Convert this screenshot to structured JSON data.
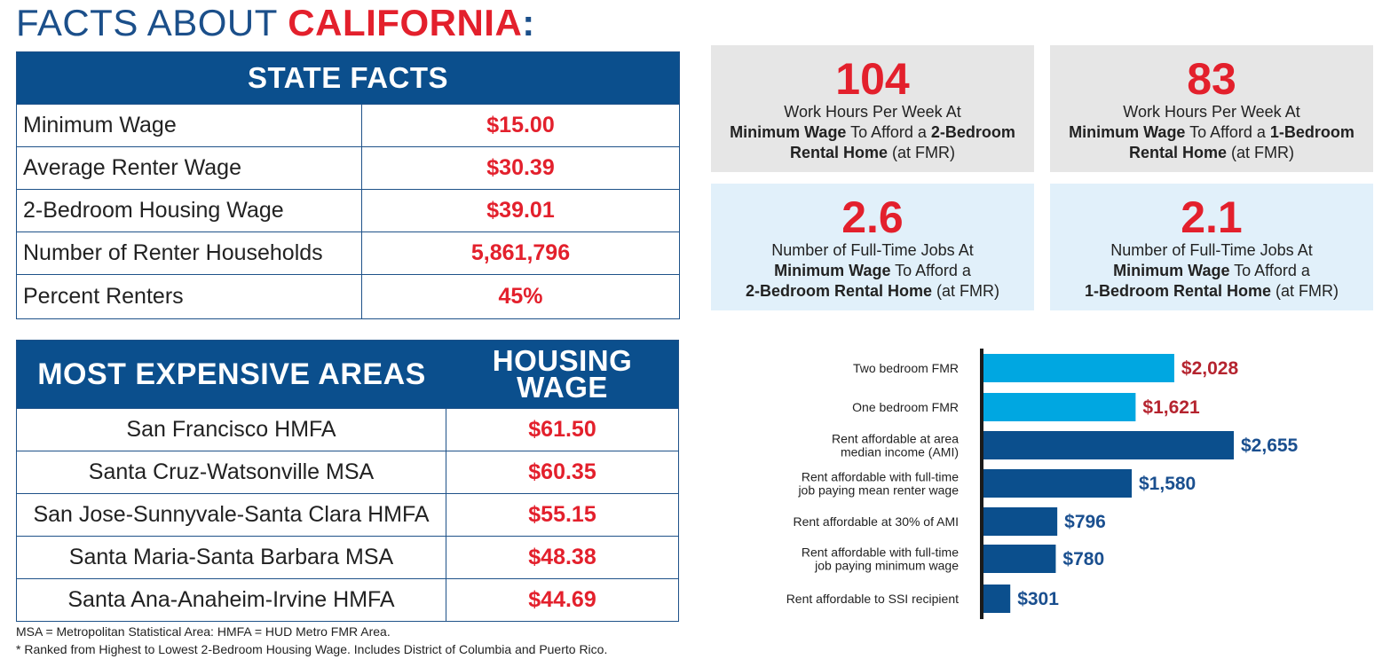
{
  "title": {
    "prefix": "FACTS ABOUT ",
    "state": "CALIFORNIA",
    "suffix": ":"
  },
  "state_facts": {
    "heading": "STATE FACTS",
    "rows": [
      {
        "label": "Minimum Wage",
        "value": "$15.00"
      },
      {
        "label": "Average Renter Wage",
        "value": "$30.39"
      },
      {
        "label": "2-Bedroom Housing Wage",
        "value": "$39.01"
      },
      {
        "label": "Number of Renter Households",
        "value": "5,861,796"
      },
      {
        "label": "Percent Renters",
        "value": "45%"
      }
    ]
  },
  "areas": {
    "heading": "MOST EXPENSIVE AREAS",
    "wage_heading_1": "HOUSING",
    "wage_heading_2": "WAGE",
    "rows": [
      {
        "label": "San Francisco HMFA",
        "value": "$61.50"
      },
      {
        "label": "Santa Cruz-Watsonville MSA",
        "value": "$60.35"
      },
      {
        "label": "San Jose-Sunnyvale-Santa Clara HMFA",
        "value": "$55.15"
      },
      {
        "label": "Santa Maria-Santa Barbara MSA",
        "value": "$48.38"
      },
      {
        "label": "Santa Ana-Anaheim-Irvine HMFA",
        "value": "$44.69"
      }
    ]
  },
  "footnotes": {
    "line1": "MSA = Metropolitan Statistical Area: HMFA = HUD Metro FMR Area.",
    "line2": "* Ranked from Highest to Lowest 2-Bedroom Housing Wage. Includes District of Columbia and Puerto Rico."
  },
  "stat_boxes": [
    {
      "number": "104",
      "l1": "Work Hours Per Week At",
      "l2_bold": "Minimum Wage",
      "l2_mid": " To Afford a ",
      "l2_bold2": "2-Bedroom",
      "l3_bold": "Rental Home",
      "l3_rest": " (at FMR)"
    },
    {
      "number": "83",
      "l1": "Work Hours Per Week At",
      "l2_bold": "Minimum Wage",
      "l2_mid": " To Afford a ",
      "l2_bold2": "1-Bedroom",
      "l3_bold": "Rental Home",
      "l3_rest": " (at FMR)"
    },
    {
      "number": "2.6",
      "l1": "Number of Full-Time Jobs At",
      "l2_bold": "Minimum Wage",
      "l2_mid": " To Afford a",
      "l2_bold2": "",
      "l3_bold": "2-Bedroom Rental Home",
      "l3_rest": " (at FMR)"
    },
    {
      "number": "2.1",
      "l1": "Number of Full-Time Jobs At",
      "l2_bold": "Minimum Wage",
      "l2_mid": " To Afford a",
      "l2_bold2": "",
      "l3_bold": "1-Bedroom Rental Home",
      "l3_rest": " (at FMR)"
    }
  ],
  "colors": {
    "red": "#e3202c",
    "navy": "#0b4f8d",
    "light_bar": "#00a7e1",
    "dark_bar": "#0b4f8d",
    "dark_red_label": "#b5242f",
    "blue_label": "#1a4f8f"
  },
  "chart_data": {
    "type": "bar",
    "orientation": "horizontal",
    "categories": [
      [
        "Two bedroom FMR"
      ],
      [
        "One bedroom FMR"
      ],
      [
        "Rent affordable at area",
        "median income (AMI)"
      ],
      [
        "Rent affordable with full-time",
        "job paying mean renter wage"
      ],
      [
        "Rent affordable at 30% of AMI"
      ],
      [
        "Rent affordable with full-time",
        "job paying minimum wage"
      ],
      [
        "Rent affordable to SSI recipient"
      ]
    ],
    "values": [
      2028,
      1621,
      2655,
      1580,
      796,
      780,
      301
    ],
    "value_labels": [
      "$2,028",
      "$1,621",
      "$2,655",
      "$1,580",
      "$796",
      "$780",
      "$301"
    ],
    "bar_colors": [
      "#00a7e1",
      "#00a7e1",
      "#0b4f8d",
      "#0b4f8d",
      "#0b4f8d",
      "#0b4f8d",
      "#0b4f8d"
    ],
    "label_colors": [
      "#b5242f",
      "#b5242f",
      "#1a4f8f",
      "#1a4f8f",
      "#1a4f8f",
      "#1a4f8f",
      "#1a4f8f"
    ],
    "title": "",
    "xlabel": "",
    "ylabel": "",
    "xlim": [
      0,
      2655
    ],
    "grid": false
  }
}
